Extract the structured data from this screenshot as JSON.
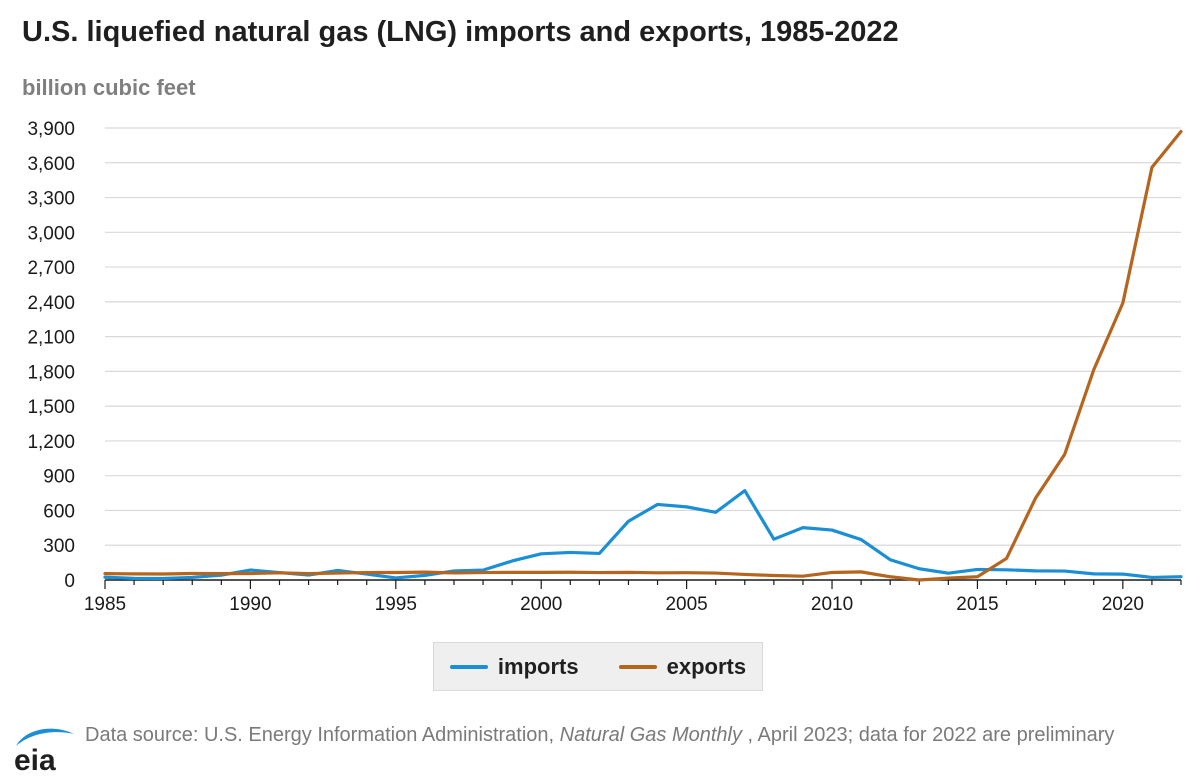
{
  "title": "U.S. liquefied natural gas (LNG) imports and exports, 1985-2022",
  "unit_label": "billion cubic feet",
  "source": {
    "prefix": "Data source: U.S. Energy Information Administration, ",
    "publication": "Natural Gas Monthly",
    "suffix": " , April 2023; data for 2022 are preliminary"
  },
  "logo_text": "eia",
  "chart_data": {
    "type": "line",
    "title": "U.S. liquefied natural gas (LNG) imports and exports, 1985-2022",
    "ylabel": "billion cubic feet",
    "xlabel": "",
    "x": [
      1985,
      1986,
      1987,
      1988,
      1989,
      1990,
      1991,
      1992,
      1993,
      1994,
      1995,
      1996,
      1997,
      1998,
      1999,
      2000,
      2001,
      2002,
      2003,
      2004,
      2005,
      2006,
      2007,
      2008,
      2009,
      2010,
      2011,
      2012,
      2013,
      2014,
      2015,
      2016,
      2017,
      2018,
      2019,
      2020,
      2021,
      2022
    ],
    "xlim": [
      1985,
      2022
    ],
    "ylim": [
      0,
      3900
    ],
    "yticks": [
      0,
      300,
      600,
      900,
      1200,
      1500,
      1800,
      2100,
      2400,
      2700,
      3000,
      3300,
      3600,
      3900
    ],
    "ytick_labels": [
      "0",
      "300",
      "600",
      "900",
      "1,200",
      "1,500",
      "1,800",
      "2,100",
      "2,400",
      "2,700",
      "3,000",
      "3,300",
      "3,600",
      "3,900"
    ],
    "xticks": [
      1985,
      1990,
      1995,
      2000,
      2005,
      2010,
      2015,
      2020
    ],
    "xtick_labels": [
      "1985",
      "1990",
      "1995",
      "2000",
      "2005",
      "2010",
      "2015",
      "2020"
    ],
    "grid": true,
    "legend_position": "bottom-center",
    "series": [
      {
        "name": "imports",
        "color": "#1a8fd6",
        "values": [
          24,
          14,
          13,
          22,
          42,
          86,
          64,
          43,
          82,
          51,
          18,
          40,
          78,
          85,
          164,
          226,
          238,
          229,
          507,
          652,
          631,
          584,
          771,
          352,
          452,
          431,
          349,
          175,
          97,
          59,
          91,
          88,
          79,
          77,
          53,
          51,
          22,
          28
        ]
      },
      {
        "name": "exports",
        "color": "#b5651d",
        "values": [
          55,
          53,
          52,
          56,
          55,
          56,
          62,
          55,
          60,
          64,
          65,
          68,
          61,
          64,
          66,
          66,
          67,
          64,
          66,
          62,
          63,
          60,
          48,
          39,
          33,
          65,
          70,
          28,
          0,
          16,
          28,
          186,
          707,
          1084,
          1814,
          2390,
          3560,
          3870
        ]
      }
    ]
  }
}
